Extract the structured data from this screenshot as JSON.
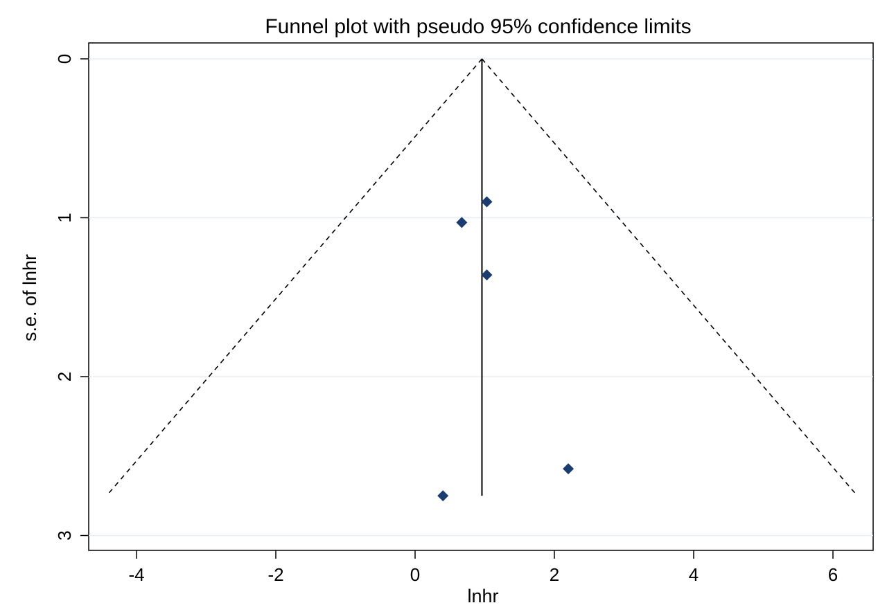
{
  "chart_data": {
    "type": "scatter",
    "title": "Funnel plot with pseudo 95% confidence limits",
    "xlabel": "lnhr",
    "ylabel": "s.e. of lnhr",
    "xlim": [
      -4.5,
      6.5
    ],
    "ylim": [
      0,
      3
    ],
    "y_reversed": true,
    "grid": "horizontal",
    "x_ticks": [
      -4,
      -2,
      0,
      2,
      4,
      6
    ],
    "x_tick_labels": [
      "-4",
      "-2",
      "0",
      "2",
      "4",
      "6"
    ],
    "y_ticks": [
      0,
      1,
      2,
      3
    ],
    "y_tick_labels": [
      "0",
      "1",
      "2",
      "3"
    ],
    "pooled_estimate": 0.96,
    "ci_se_max": 2.75,
    "points": [
      {
        "x": 1.03,
        "y": 0.9
      },
      {
        "x": 0.67,
        "y": 1.03
      },
      {
        "x": 1.03,
        "y": 1.36
      },
      {
        "x": 2.2,
        "y": 2.58
      },
      {
        "x": 0.4,
        "y": 2.75
      }
    ],
    "colors": {
      "points": "#1a3c6e",
      "grid": "#e6eef3",
      "lines": "#000000"
    }
  }
}
